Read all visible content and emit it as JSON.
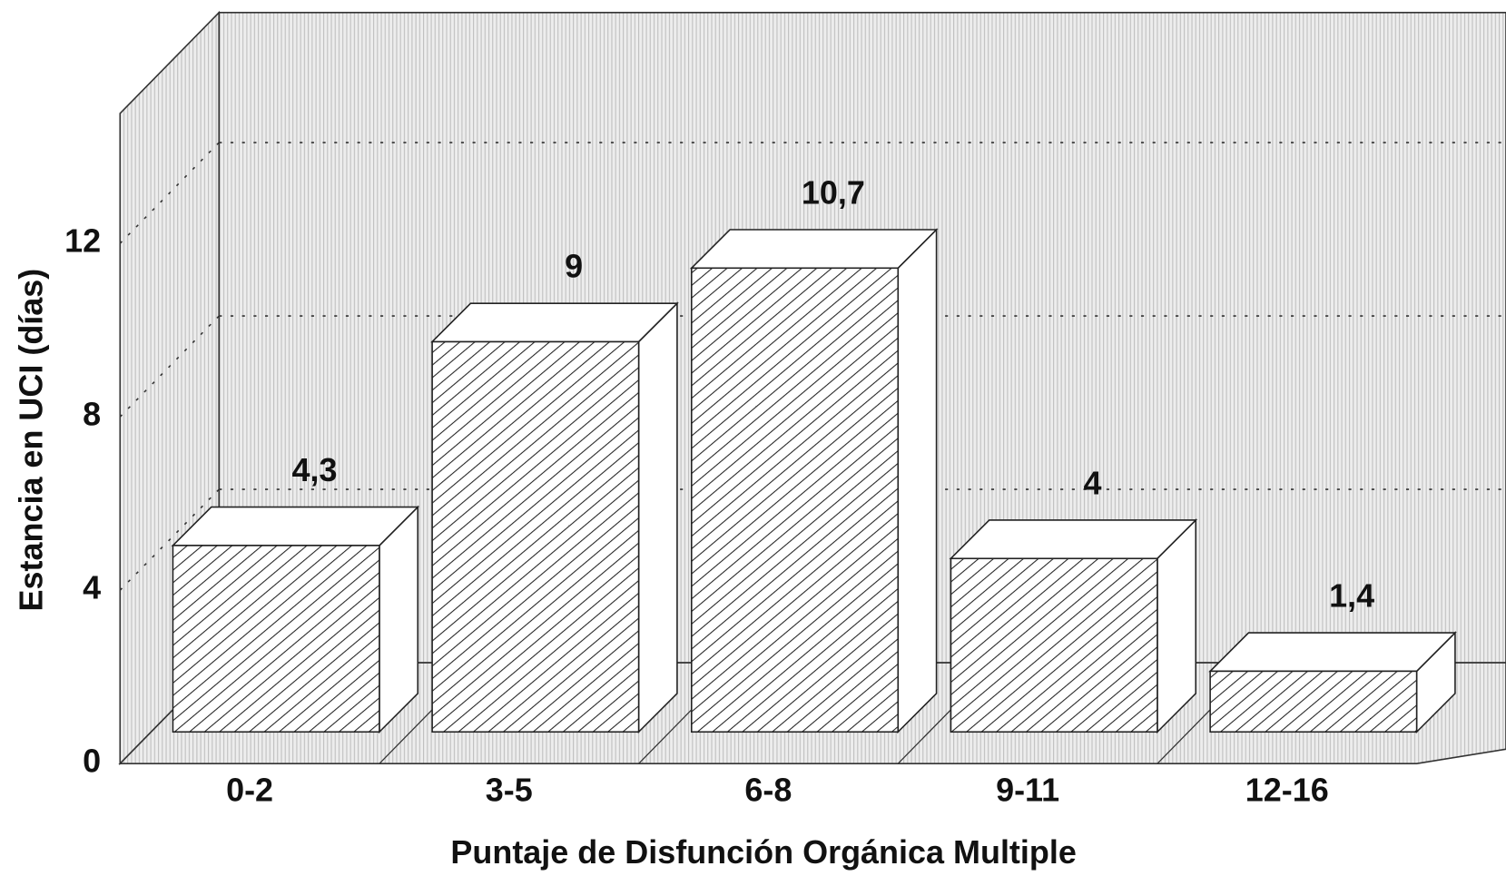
{
  "chart_data": {
    "type": "bar3d",
    "categories": [
      "0-2",
      "3-5",
      "6-8",
      "9-11",
      "12-16"
    ],
    "values": [
      4.3,
      9,
      10.7,
      4,
      1.4
    ],
    "value_labels": [
      "4,3",
      "9",
      "10,7",
      "4",
      "1,4"
    ],
    "color": "#ffffff",
    "ylim": [
      0,
      15
    ],
    "yticks": [
      0,
      4,
      8,
      12
    ],
    "grid": true,
    "xlabel": "Puntaje de Disfunción Orgánica Multiple",
    "ylabel": "Estancia en UCI (días)"
  }
}
